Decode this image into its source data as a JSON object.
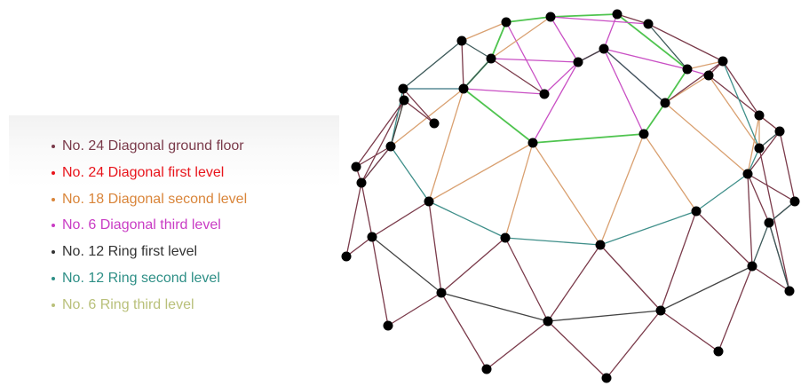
{
  "legend": {
    "items": [
      {
        "label": "No. 24 Diagonal ground floor",
        "color": "#7a3a4a"
      },
      {
        "label": "No. 24 Diagonal first level",
        "color": "#e8141b"
      },
      {
        "label": "No. 18 Diagonal second level",
        "color": "#d9853a"
      },
      {
        "label": "No. 6 Diagonal third level",
        "color": "#c93cc4"
      },
      {
        "label": "No. 12 Ring first level",
        "color": "#333333"
      },
      {
        "label": "No. 12 Ring second level",
        "color": "#2e8f86"
      },
      {
        "label": "No. 6 Ring third level",
        "color": "#b9c07a"
      }
    ]
  },
  "dome": {
    "edge_colors": {
      "ground": "#7a3a4a",
      "ring_lower": "#3d5a5a",
      "diag_mid": "#d9a070",
      "ring_mid": "#3f8f8a",
      "diag_top": "#c94fc4",
      "ring_top": "#4fc44f",
      "dark": "#444444"
    }
  }
}
